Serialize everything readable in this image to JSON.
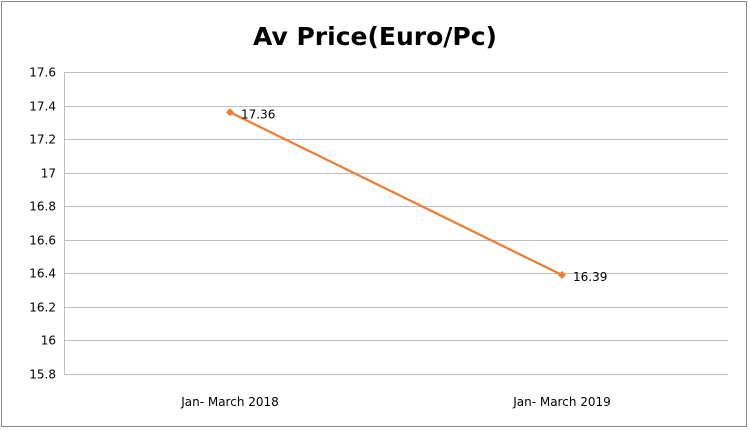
{
  "chart_data": {
    "type": "line",
    "title": "Av Price(Euro/Pc)",
    "xlabel": "",
    "ylabel": "",
    "categories": [
      "Jan- March 2018",
      "Jan- March 2019"
    ],
    "series": [
      {
        "values": [
          17.36,
          16.39
        ],
        "data_labels": [
          "17.36",
          "16.39"
        ],
        "color": "#ed7d31",
        "marker": "diamond"
      }
    ],
    "ylim": [
      15.8,
      17.6
    ],
    "y_ticks": [
      15.8,
      16,
      16.2,
      16.4,
      16.6,
      16.8,
      17,
      17.2,
      17.4,
      17.6
    ],
    "y_tick_labels": [
      "15.8",
      "16",
      "16.2",
      "16.4",
      "16.6",
      "16.8",
      "17",
      "17.2",
      "17.4",
      "17.6"
    ],
    "grid": true,
    "gridline_color": "#bfbfbf",
    "legend": "none"
  }
}
